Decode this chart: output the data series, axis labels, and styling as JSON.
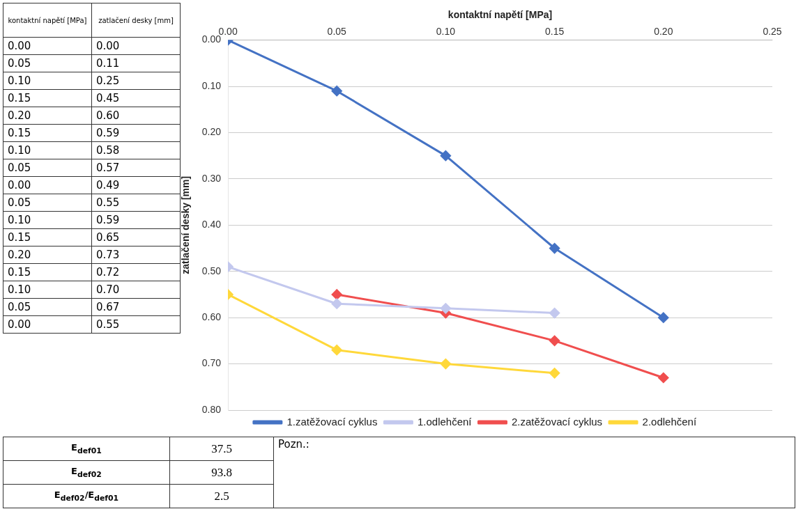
{
  "chart_data": [
    {
      "type": "line",
      "xlabel": "kontaktní napětí [MPa]",
      "ylabel": "zatlačení desky [mm]",
      "xlim": [
        0,
        0.25
      ],
      "xticks": [
        {
          "value": 0,
          "label": "0.00"
        },
        {
          "value": 0.05,
          "label": "0.05"
        },
        {
          "value": 0.1,
          "label": "0.10"
        },
        {
          "value": 0.15,
          "label": "0.15"
        },
        {
          "value": 0.2,
          "label": "0.20"
        },
        {
          "value": 0.25,
          "label": "0.25"
        }
      ],
      "ylim": [
        0.8,
        0
      ],
      "yticks": [
        {
          "value": 0,
          "label": "0.00"
        },
        {
          "value": 0.1,
          "label": "0.10"
        },
        {
          "value": 0.2,
          "label": "0.20"
        },
        {
          "value": 0.3,
          "label": "0.30"
        },
        {
          "value": 0.4,
          "label": "0.40"
        },
        {
          "value": 0.5,
          "label": "0.50"
        },
        {
          "value": 0.6,
          "label": "0.60"
        },
        {
          "value": 0.7,
          "label": "0.70"
        },
        {
          "value": 0.8,
          "label": "0.80"
        }
      ],
      "grid": "y",
      "legend": "bottom",
      "marker": "diamond",
      "series": [
        {
          "name": "1.zatěžovací cyklus",
          "color": "#4472c4",
          "x": [
            0,
            0.05,
            0.1,
            0.15,
            0.2
          ],
          "values": [
            0,
            0.11,
            0.25,
            0.45,
            0.6
          ]
        },
        {
          "name": "1.odlehčení",
          "color": "#c3c8ee",
          "x": [
            0.15,
            0.1,
            0.05,
            0
          ],
          "values": [
            0.59,
            0.58,
            0.57,
            0.49
          ]
        },
        {
          "name": "2.zatěžovací cyklus",
          "color": "#f04e4e",
          "x": [
            0.05,
            0.1,
            0.15,
            0.2
          ],
          "values": [
            0.55,
            0.59,
            0.65,
            0.73
          ]
        },
        {
          "name": "2.odlehčení",
          "color": "#ffd83a",
          "x": [
            0.15,
            0.1,
            0.05,
            0
          ],
          "values": [
            0.72,
            0.7,
            0.67,
            0.55
          ]
        }
      ]
    },
    {
      "type": "other",
      "annotations": [
        "kontaktní napětí [MPa]",
        "zatlačení desky [mm]",
        "0.00",
        "0.00",
        "0.05",
        "0.11",
        "0.10",
        "0.25",
        "0.15",
        "0.45",
        "0.20",
        "0.60",
        "0.15",
        "0.59",
        "0.10",
        "0.58",
        "0.05",
        "0.57",
        "0.00",
        "0.49",
        "0.05",
        "0.55",
        "0.10",
        "0.59",
        "0.15",
        "0.65",
        "0.20",
        "0.73",
        "0.15",
        "0.72",
        "0.10",
        "0.70",
        "0.05",
        "0.67",
        "0.00",
        "0.55"
      ]
    },
    {
      "type": "other",
      "annotations": [
        "E$_{def01}$",
        "37.5",
        "E$_{def02}$",
        "93.8",
        "E$_{def02}$/E$_{def01}$",
        "2.5",
        "Pozn.:"
      ]
    }
  ]
}
